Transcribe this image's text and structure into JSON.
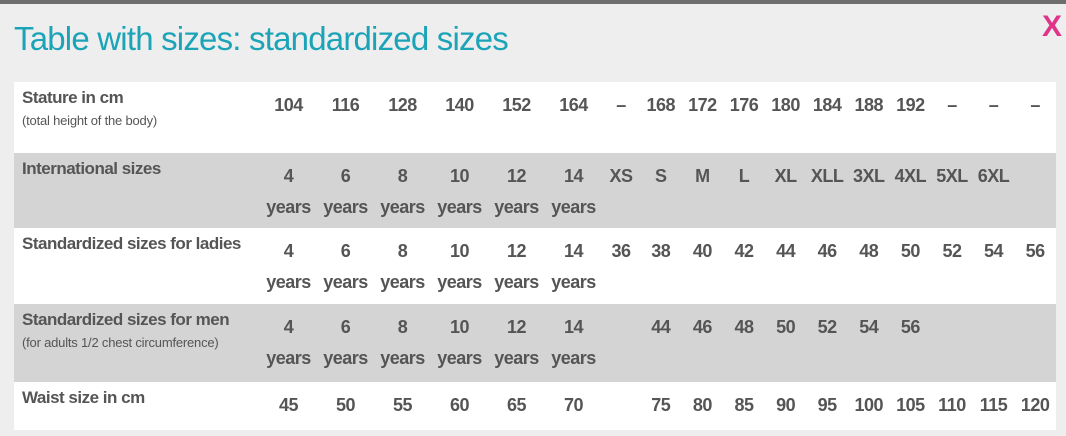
{
  "header": {
    "title": "Table with sizes: standardized sizes",
    "close": "X"
  },
  "table": {
    "rows": [
      {
        "label": "Stature in cm",
        "note": "(total height of the body)",
        "cells": [
          "104",
          "116",
          "128",
          "140",
          "152",
          "164",
          "–",
          "168",
          "172",
          "176",
          "180",
          "184",
          "188",
          "192",
          "–",
          "–",
          "–"
        ]
      },
      {
        "label": "International sizes",
        "cells": [
          "4 years",
          "6 years",
          "8 years",
          "10 years",
          "12 years",
          "14 years",
          "XS",
          "S",
          "M",
          "L",
          "XL",
          "XLL",
          "3XL",
          "4XL",
          "5XL",
          "6XL",
          null
        ]
      },
      {
        "label": "Standardized sizes for ladies",
        "cells": [
          "4 years",
          "6 years",
          "8 years",
          "10 years",
          "12 years",
          "14 years",
          "36",
          "38",
          "40",
          "42",
          "44",
          "46",
          "48",
          "50",
          "52",
          "54",
          "56"
        ]
      },
      {
        "label": "Standardized sizes for men",
        "note": "(for adults 1/2 chest circumference)",
        "cells": [
          "4 years",
          "6 years",
          "8 years",
          "10 years",
          "12 years",
          "14 years",
          null,
          "44",
          "46",
          "48",
          "50",
          "52",
          "54",
          "56",
          null,
          null,
          null
        ]
      },
      {
        "label": "Waist size in cm",
        "cells": [
          "45",
          "50",
          "55",
          "60",
          "65",
          "70",
          null,
          "75",
          "80",
          "85",
          "90",
          "95",
          "100",
          "105",
          "110",
          "115",
          "120"
        ]
      }
    ]
  }
}
